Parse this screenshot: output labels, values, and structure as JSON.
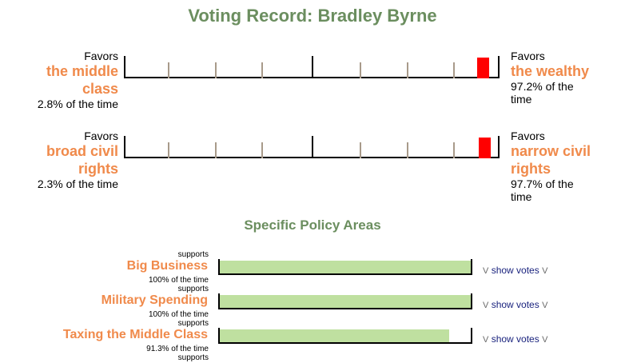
{
  "title": "Voting Record: Bradley Byrne",
  "scales": [
    {
      "left": {
        "favors": "Favors",
        "line1": "the middle",
        "line2": "class",
        "pct": "2.8% of the time"
      },
      "right": {
        "favors": "Favors",
        "line1": "the wealthy",
        "pct_line1": "97.2% of the",
        "pct_line2": "time"
      },
      "score_percent": 97.2
    },
    {
      "left": {
        "favors": "Favors",
        "line1": "broad civil",
        "line2": "rights",
        "pct": "2.3% of the time"
      },
      "right": {
        "favors": "Favors",
        "line1": "narrow civil",
        "line2": "rights",
        "pct_line1": "97.7% of the",
        "pct_line2": "time"
      },
      "score_percent": 97.7
    }
  ],
  "policy_section_title": "Specific Policy Areas",
  "policy_areas": [
    {
      "supports": "supports",
      "name": "Big Business",
      "pct": "100% of the time",
      "value_percent": 100,
      "show_votes": "show votes",
      "chevron": "V"
    },
    {
      "supports": "supports",
      "name": "Military Spending",
      "pct": "100% of the time",
      "value_percent": 100,
      "show_votes": "show votes",
      "chevron": "V"
    },
    {
      "supports": "supports",
      "name": "Taxing the Middle Class",
      "pct": "91.3% of the time",
      "value_percent": 91.3,
      "show_votes": "show votes",
      "chevron": "V"
    }
  ],
  "trailing_supports": "supports",
  "colors": {
    "heading": "#6b8e5f",
    "side_label": "#f08a4b",
    "marker": "#ff0000",
    "bar_fill": "#bfe0a0",
    "link": "#1a237e"
  }
}
